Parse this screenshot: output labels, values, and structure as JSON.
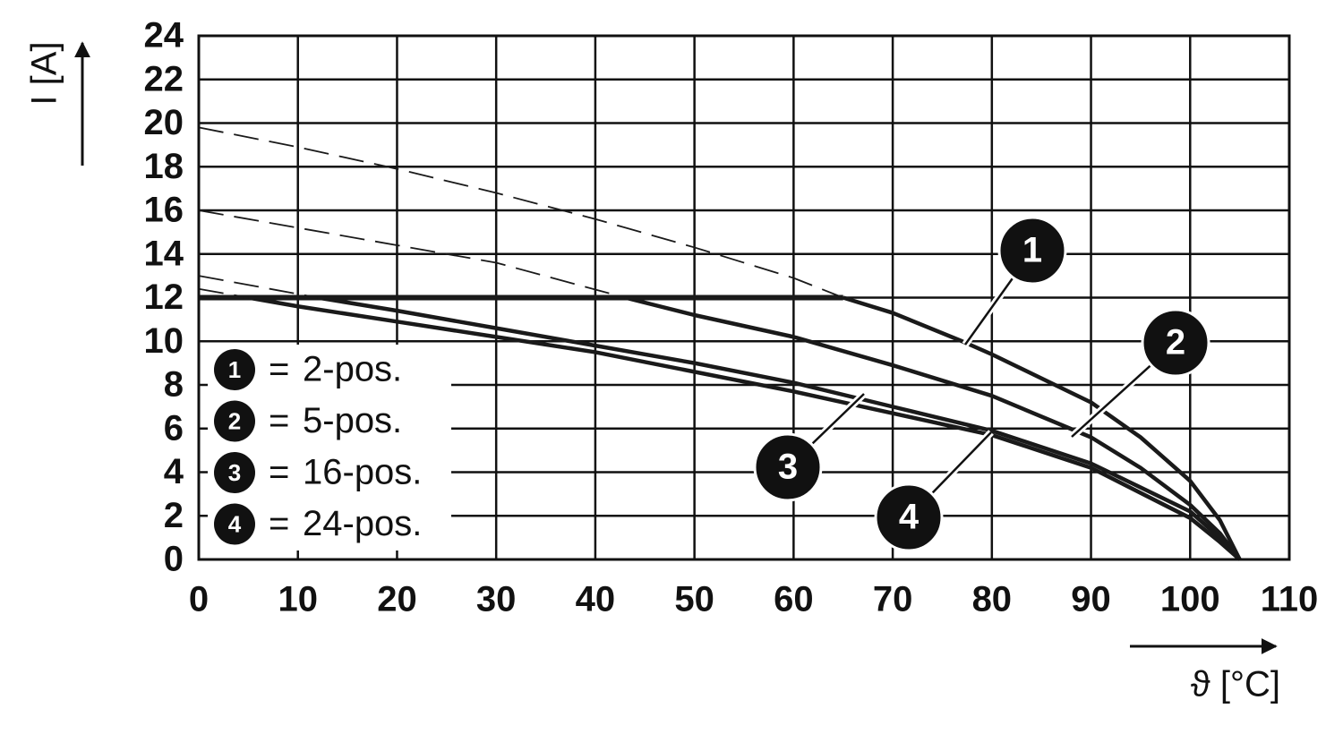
{
  "chart_data": {
    "type": "line",
    "y_label": "I [A]",
    "x_label": "ϑ [°C]",
    "xlim": [
      0,
      110
    ],
    "ylim": [
      0,
      24
    ],
    "xticks": [
      0,
      10,
      20,
      30,
      40,
      50,
      60,
      70,
      80,
      90,
      100,
      110
    ],
    "yticks": [
      0,
      2,
      4,
      6,
      8,
      10,
      12,
      14,
      16,
      18,
      20,
      22,
      24
    ],
    "grid": true,
    "color": "#1a1a1a",
    "legend_position": "lower left",
    "legend_separator": "=",
    "dashed_above": 12,
    "limit": {
      "x": [
        0,
        65
      ],
      "values": [
        12,
        12
      ]
    },
    "series": [
      {
        "name": "2-pos.",
        "marker": "1",
        "color": "#1a1a1a",
        "x": [
          0,
          10,
          20,
          30,
          40,
          50,
          60,
          65,
          70,
          77,
          80,
          90,
          95,
          100,
          103,
          105
        ],
        "values": [
          19.8,
          18.9,
          17.9,
          16.8,
          15.6,
          14.3,
          12.9,
          12,
          11.3,
          10,
          9.4,
          7.2,
          5.6,
          3.6,
          1.8,
          0
        ]
      },
      {
        "name": "5-pos.",
        "marker": "2",
        "color": "#1a1a1a",
        "x": [
          0,
          10,
          20,
          30,
          43,
          50,
          60,
          70,
          80,
          90,
          95,
          100,
          103,
          105
        ],
        "values": [
          16,
          15.2,
          14.4,
          13.6,
          12,
          11.2,
          10.2,
          8.9,
          7.5,
          5.6,
          4.2,
          2.5,
          1.2,
          0
        ]
      },
      {
        "name": "16-pos.",
        "marker": "3",
        "color": "#1a1a1a",
        "x": [
          0,
          12,
          20,
          30,
          40,
          50,
          60,
          70,
          80,
          90,
          100,
          103,
          105
        ],
        "values": [
          13,
          12,
          11.4,
          10.6,
          9.8,
          9.0,
          8.1,
          7.0,
          5.9,
          4.4,
          2.2,
          1.0,
          0
        ]
      },
      {
        "name": "24-pos.",
        "marker": "4",
        "color": "#1a1a1a",
        "x": [
          0,
          5,
          10,
          20,
          30,
          40,
          50,
          60,
          70,
          80,
          90,
          100,
          103,
          105
        ],
        "values": [
          12.4,
          12,
          11.6,
          10.9,
          10.2,
          9.5,
          8.6,
          7.7,
          6.7,
          5.7,
          4.2,
          1.9,
          0.8,
          0
        ]
      }
    ]
  }
}
